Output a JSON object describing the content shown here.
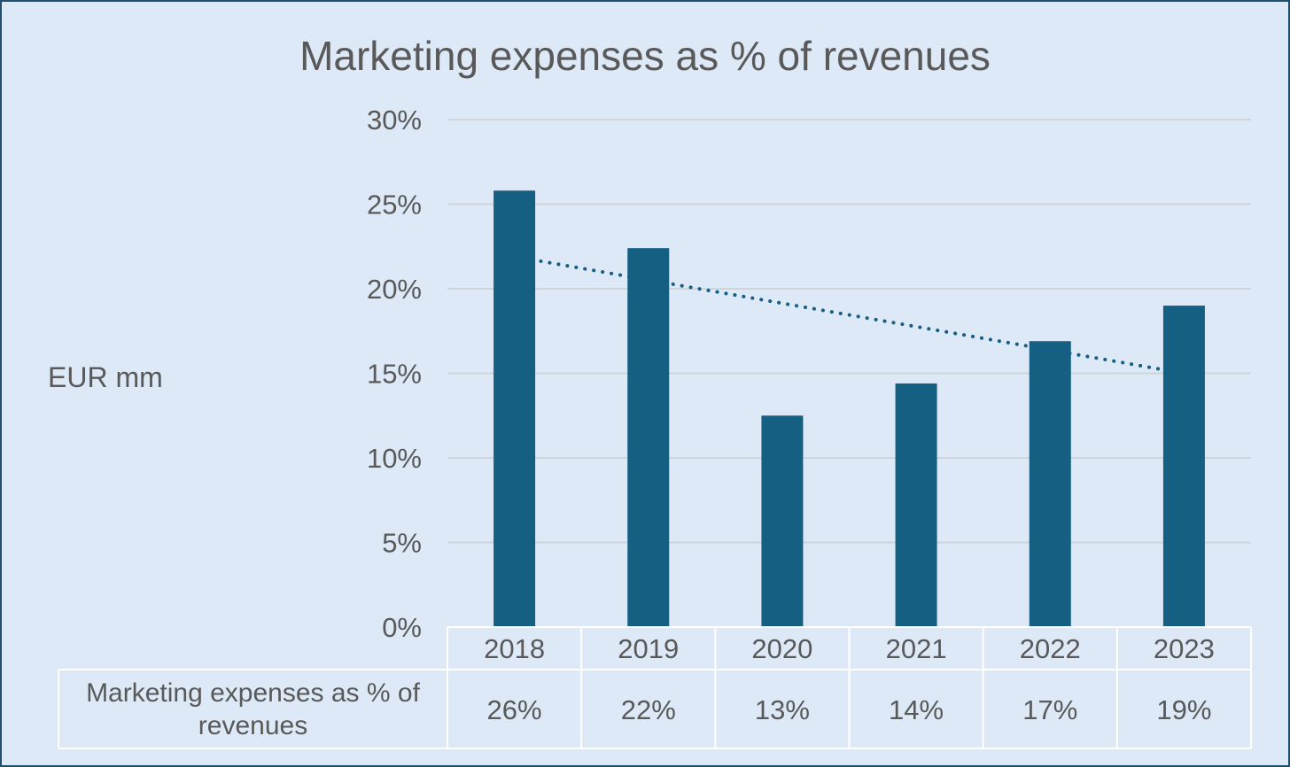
{
  "chart_data": {
    "type": "bar",
    "title": "Marketing expenses as % of revenues",
    "ylabel": "EUR mm",
    "xlabel": "",
    "categories": [
      "2018",
      "2019",
      "2020",
      "2021",
      "2022",
      "2023"
    ],
    "series": [
      {
        "name": "Marketing expenses as % of revenues",
        "values": [
          25.8,
          22.4,
          12.5,
          14.4,
          16.9,
          19.0
        ],
        "color": "#155f82"
      }
    ],
    "ylim": [
      0,
      30
    ],
    "yticks": [
      "0%",
      "5%",
      "10%",
      "15%",
      "20%",
      "25%",
      "30%"
    ],
    "ytick_values": [
      0,
      5,
      10,
      15,
      20,
      25,
      30
    ],
    "trendline": {
      "type": "linear",
      "style": "dotted",
      "color": "#155f82",
      "start_value": 21.9,
      "end_value": 15.0
    },
    "data_table": {
      "row_label": "Marketing expenses as % of revenues",
      "values": [
        "26%",
        "22%",
        "13%",
        "14%",
        "17%",
        "19%"
      ]
    },
    "grid": true,
    "legend": "none",
    "colors": {
      "background": "#dde9f6",
      "border": "#1e4f6b",
      "bar": "#155f82",
      "gridline": "#d0d4d8",
      "text": "#595959",
      "table_lines": "#ffffff"
    }
  }
}
